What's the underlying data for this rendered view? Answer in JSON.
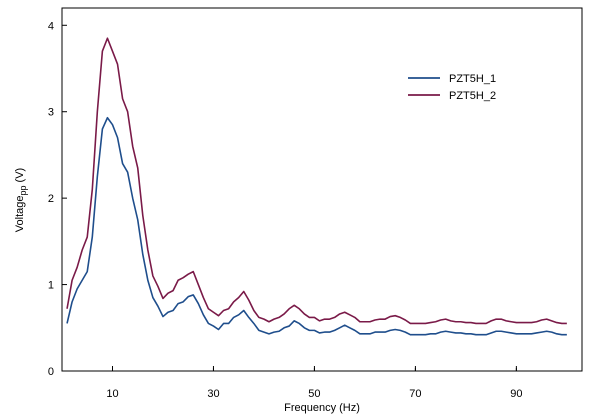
{
  "chart_data": {
    "type": "line",
    "title": "",
    "xlabel": "Frequency (Hz)",
    "ylabel": {
      "base": "Voltage",
      "sub": "pp",
      "unit": " (V)"
    },
    "xlim": [
      0,
      103
    ],
    "ylim": [
      0,
      4.2
    ],
    "xticks": [
      10,
      30,
      50,
      70,
      90
    ],
    "yticks": [
      0,
      1,
      2,
      3,
      4
    ],
    "grid": false,
    "legend_position": "top-right",
    "x": [
      1,
      2,
      3,
      4,
      5,
      6,
      7,
      8,
      9,
      10,
      11,
      12,
      13,
      14,
      15,
      16,
      17,
      18,
      19,
      20,
      21,
      22,
      23,
      24,
      25,
      26,
      27,
      28,
      29,
      30,
      31,
      32,
      33,
      34,
      35,
      36,
      37,
      38,
      39,
      40,
      41,
      42,
      43,
      44,
      45,
      46,
      47,
      48,
      49,
      50,
      51,
      52,
      53,
      54,
      55,
      56,
      57,
      58,
      59,
      60,
      61,
      62,
      63,
      64,
      65,
      66,
      67,
      68,
      69,
      70,
      71,
      72,
      73,
      74,
      75,
      76,
      77,
      78,
      79,
      80,
      81,
      82,
      83,
      84,
      85,
      86,
      87,
      88,
      89,
      90,
      91,
      92,
      93,
      94,
      95,
      96,
      97,
      98,
      99,
      100
    ],
    "series": [
      {
        "name": "PZT5H_1",
        "color": "#1f4e8c",
        "values": [
          0.55,
          0.8,
          0.95,
          1.05,
          1.15,
          1.55,
          2.25,
          2.8,
          2.93,
          2.85,
          2.7,
          2.4,
          2.3,
          2.0,
          1.75,
          1.35,
          1.05,
          0.85,
          0.75,
          0.63,
          0.68,
          0.7,
          0.78,
          0.8,
          0.86,
          0.88,
          0.78,
          0.65,
          0.55,
          0.52,
          0.48,
          0.55,
          0.55,
          0.62,
          0.65,
          0.7,
          0.62,
          0.55,
          0.47,
          0.45,
          0.43,
          0.45,
          0.46,
          0.5,
          0.52,
          0.58,
          0.55,
          0.5,
          0.47,
          0.47,
          0.44,
          0.45,
          0.45,
          0.47,
          0.5,
          0.53,
          0.5,
          0.47,
          0.43,
          0.43,
          0.43,
          0.45,
          0.45,
          0.45,
          0.47,
          0.48,
          0.47,
          0.45,
          0.42,
          0.42,
          0.42,
          0.42,
          0.43,
          0.43,
          0.45,
          0.46,
          0.45,
          0.44,
          0.44,
          0.43,
          0.43,
          0.42,
          0.42,
          0.42,
          0.44,
          0.46,
          0.46,
          0.45,
          0.44,
          0.43,
          0.43,
          0.43,
          0.43,
          0.44,
          0.45,
          0.46,
          0.45,
          0.43,
          0.42,
          0.42
        ]
      },
      {
        "name": "PZT5H_2",
        "color": "#7a1a48",
        "values": [
          0.72,
          1.05,
          1.2,
          1.4,
          1.55,
          2.1,
          3.0,
          3.7,
          3.85,
          3.7,
          3.55,
          3.15,
          3.0,
          2.6,
          2.35,
          1.8,
          1.4,
          1.1,
          0.98,
          0.84,
          0.9,
          0.93,
          1.05,
          1.08,
          1.12,
          1.15,
          1.0,
          0.85,
          0.72,
          0.68,
          0.64,
          0.7,
          0.72,
          0.8,
          0.85,
          0.92,
          0.82,
          0.7,
          0.62,
          0.6,
          0.57,
          0.6,
          0.62,
          0.66,
          0.72,
          0.76,
          0.72,
          0.66,
          0.62,
          0.62,
          0.58,
          0.6,
          0.6,
          0.62,
          0.66,
          0.68,
          0.65,
          0.62,
          0.57,
          0.57,
          0.57,
          0.59,
          0.6,
          0.6,
          0.63,
          0.64,
          0.62,
          0.59,
          0.55,
          0.55,
          0.55,
          0.55,
          0.56,
          0.57,
          0.59,
          0.6,
          0.58,
          0.57,
          0.57,
          0.56,
          0.56,
          0.55,
          0.55,
          0.55,
          0.58,
          0.6,
          0.6,
          0.58,
          0.57,
          0.56,
          0.56,
          0.56,
          0.56,
          0.57,
          0.59,
          0.6,
          0.58,
          0.56,
          0.55,
          0.55
        ]
      }
    ]
  }
}
